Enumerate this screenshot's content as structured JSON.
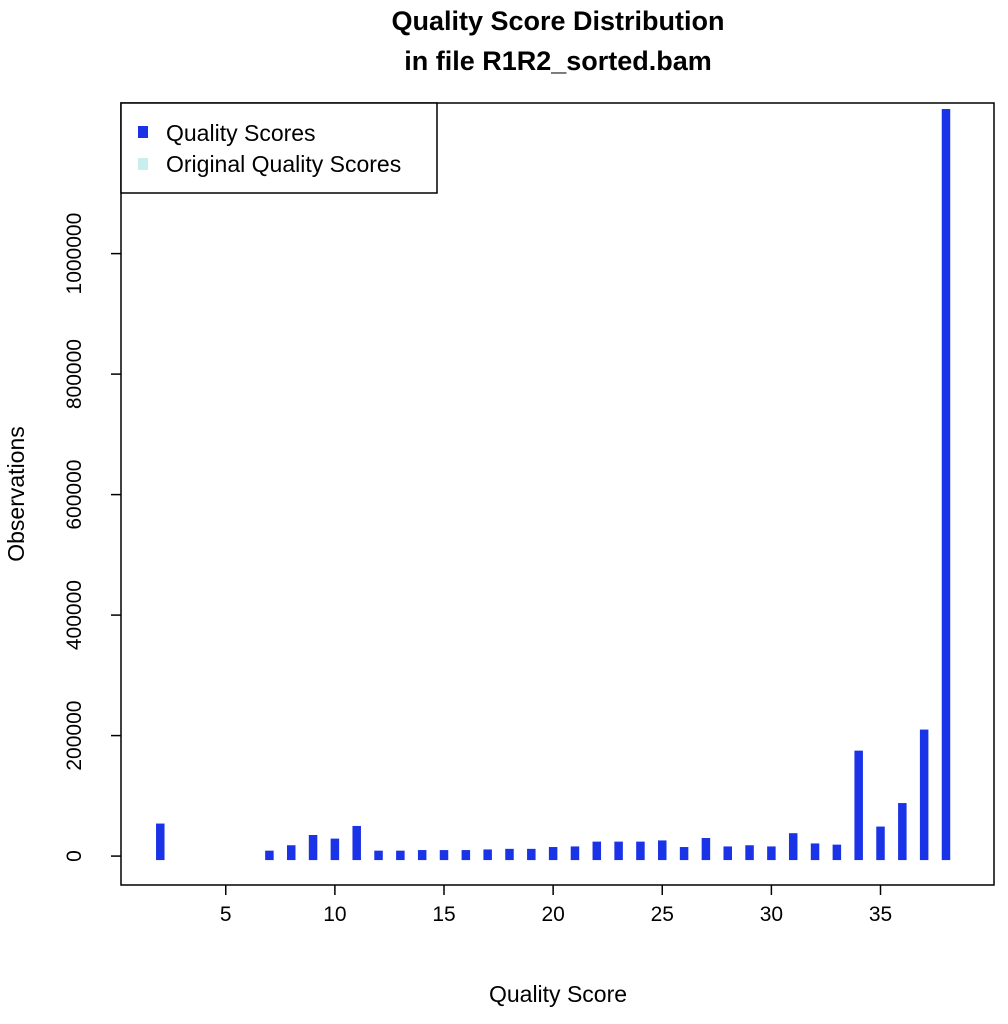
{
  "chart_data": {
    "type": "bar",
    "title": "Quality Score Distribution",
    "subtitle": "in file R1R2_sorted.bam",
    "xlabel": "Quality Score",
    "ylabel": "Observations",
    "xlim": [
      0.2,
      40.2
    ],
    "ylim": [
      -48000,
      1250000
    ],
    "x_ticks": [
      5,
      10,
      15,
      20,
      25,
      30,
      35
    ],
    "y_ticks": [
      0,
      200000,
      400000,
      600000,
      800000,
      1000000
    ],
    "grid": false,
    "legend_position": "top-left",
    "series": [
      {
        "name": "Quality Scores",
        "color": "#1a33e6",
        "x": [
          2,
          7,
          8,
          9,
          10,
          11,
          12,
          13,
          14,
          15,
          16,
          17,
          18,
          19,
          20,
          21,
          22,
          23,
          24,
          25,
          26,
          27,
          28,
          29,
          30,
          31,
          32,
          33,
          34,
          35,
          36,
          37,
          38
        ],
        "values": [
          54000,
          9000,
          18000,
          35000,
          29000,
          50000,
          9000,
          9000,
          10000,
          10000,
          10000,
          11000,
          12000,
          12000,
          15000,
          16000,
          24000,
          24000,
          24000,
          26000,
          15000,
          30000,
          16000,
          18000,
          16000,
          38000,
          21000,
          19000,
          175000,
          49000,
          88000,
          210000,
          1240000
        ]
      },
      {
        "name": "Original Quality Scores",
        "color": "#c8eeee",
        "x": [],
        "values": []
      }
    ]
  }
}
